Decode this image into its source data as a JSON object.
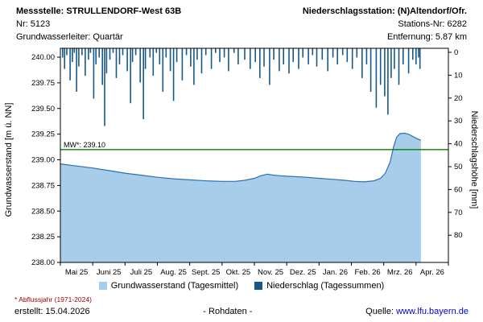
{
  "header": {
    "left": {
      "title": "Messstelle: STRULLENDORF-West 63B",
      "line2": "Nr: 5123",
      "line3": "Grundwasserleiter: Quartär"
    },
    "right": {
      "title": "Niederschlagsstation: (N)Altendorf/Ofr.",
      "line2": "Stations-Nr: 6282",
      "line3": "Entfernung: 5.87 km"
    }
  },
  "chart_data": {
    "type": "area+bar",
    "left_axis": {
      "label": "Grundwasserstand [m ü. NN]",
      "min": 238.0,
      "max": 240.0,
      "tick_step": 0.25
    },
    "right_axis": {
      "label": "Niederschlagshöhe [mm]",
      "min": 0,
      "max": 80,
      "tick_step": 10,
      "inverted": true
    },
    "x_axis": {
      "labels": [
        "Mai 25",
        "Juni 25",
        "Juli 25",
        "Aug. 25",
        "Sept. 25",
        "Okt. 25",
        "Nov. 25",
        "Dez. 25",
        "Jan. 26",
        "Feb. 26",
        "Mrz. 26",
        "Apr. 26"
      ]
    },
    "mean_line": {
      "label": "MW*: 239.10",
      "value": 239.1,
      "color": "#008000"
    },
    "groundwater": {
      "name": "Grundwasserstand (Tagesmittel)",
      "color_fill": "#a8cdea",
      "color_line": "#2f6fad",
      "points": [
        [
          0,
          238.96
        ],
        [
          0.5,
          238.94
        ],
        [
          1,
          238.92
        ],
        [
          1.5,
          238.895
        ],
        [
          2,
          238.87
        ],
        [
          2.5,
          238.85
        ],
        [
          3,
          238.83
        ],
        [
          3.5,
          238.815
        ],
        [
          4,
          238.805
        ],
        [
          4.5,
          238.795
        ],
        [
          5,
          238.79
        ],
        [
          5.4,
          238.79
        ],
        [
          5.7,
          238.8
        ],
        [
          6,
          238.82
        ],
        [
          6.2,
          238.845
        ],
        [
          6.4,
          238.86
        ],
        [
          6.6,
          238.85
        ],
        [
          6.8,
          238.845
        ],
        [
          7,
          238.84
        ],
        [
          7.3,
          238.835
        ],
        [
          7.6,
          238.83
        ],
        [
          8,
          238.82
        ],
        [
          8.4,
          238.81
        ],
        [
          8.8,
          238.8
        ],
        [
          9.1,
          238.79
        ],
        [
          9.4,
          238.785
        ],
        [
          9.7,
          238.795
        ],
        [
          9.9,
          238.82
        ],
        [
          10.05,
          238.87
        ],
        [
          10.2,
          238.98
        ],
        [
          10.3,
          239.12
        ],
        [
          10.4,
          239.22
        ],
        [
          10.5,
          239.255
        ],
        [
          10.65,
          239.26
        ],
        [
          10.8,
          239.245
        ],
        [
          11.0,
          239.21
        ],
        [
          11.15,
          239.19
        ]
      ]
    },
    "precipitation": {
      "name": "Niederschlag (Tagessummen)",
      "color": "#15598c",
      "bars": [
        [
          0.07,
          4
        ],
        [
          0.13,
          9
        ],
        [
          0.2,
          3
        ],
        [
          0.3,
          14
        ],
        [
          0.37,
          6
        ],
        [
          0.43,
          2
        ],
        [
          0.5,
          19
        ],
        [
          0.57,
          8
        ],
        [
          0.67,
          3
        ],
        [
          0.77,
          12
        ],
        [
          0.87,
          5
        ],
        [
          0.93,
          2
        ],
        [
          1.03,
          22
        ],
        [
          1.1,
          7
        ],
        [
          1.2,
          4
        ],
        [
          1.3,
          16
        ],
        [
          1.37,
          34
        ],
        [
          1.43,
          11
        ],
        [
          1.53,
          5
        ],
        [
          1.63,
          2
        ],
        [
          1.73,
          13
        ],
        [
          1.83,
          7
        ],
        [
          1.93,
          3
        ],
        [
          2.07,
          10
        ],
        [
          2.17,
          24
        ],
        [
          2.23,
          6
        ],
        [
          2.33,
          3
        ],
        [
          2.47,
          15
        ],
        [
          2.57,
          31
        ],
        [
          2.63,
          9
        ],
        [
          2.77,
          4
        ],
        [
          2.87,
          12
        ],
        [
          2.97,
          2
        ],
        [
          3.07,
          7
        ],
        [
          3.17,
          19
        ],
        [
          3.27,
          4
        ],
        [
          3.4,
          10
        ],
        [
          3.5,
          23
        ],
        [
          3.6,
          6
        ],
        [
          3.77,
          14
        ],
        [
          3.9,
          3
        ],
        [
          4.03,
          8
        ],
        [
          4.13,
          16
        ],
        [
          4.23,
          5
        ],
        [
          4.37,
          11
        ],
        [
          4.5,
          3
        ],
        [
          4.67,
          9
        ],
        [
          4.8,
          2
        ],
        [
          4.93,
          6
        ],
        [
          5.07,
          4
        ],
        [
          5.2,
          10
        ],
        [
          5.37,
          2
        ],
        [
          5.5,
          7
        ],
        [
          5.7,
          5
        ],
        [
          5.87,
          9
        ],
        [
          6.03,
          6
        ],
        [
          6.17,
          13
        ],
        [
          6.3,
          8
        ],
        [
          6.47,
          16
        ],
        [
          6.6,
          5
        ],
        [
          6.77,
          10
        ],
        [
          6.9,
          7
        ],
        [
          7.07,
          11
        ],
        [
          7.2,
          6
        ],
        [
          7.37,
          9
        ],
        [
          7.5,
          4
        ],
        [
          7.67,
          7
        ],
        [
          7.8,
          3
        ],
        [
          7.93,
          8
        ],
        [
          8.1,
          5
        ],
        [
          8.27,
          10
        ],
        [
          8.43,
          4
        ],
        [
          8.57,
          7
        ],
        [
          8.73,
          3
        ],
        [
          8.87,
          6
        ],
        [
          9.03,
          9
        ],
        [
          9.17,
          4
        ],
        [
          9.33,
          13
        ],
        [
          9.47,
          7
        ],
        [
          9.6,
          19
        ],
        [
          9.77,
          26
        ],
        [
          9.9,
          16
        ],
        [
          10.03,
          21
        ],
        [
          10.13,
          29
        ],
        [
          10.23,
          13
        ],
        [
          10.33,
          9
        ],
        [
          10.47,
          16
        ],
        [
          10.6,
          7
        ],
        [
          10.77,
          11
        ],
        [
          10.9,
          5
        ],
        [
          11.0,
          7
        ],
        [
          11.08,
          4
        ],
        [
          11.12,
          9
        ]
      ]
    }
  },
  "legend": {
    "groundwater": "Grundwasserstand (Tagesmittel)",
    "precipitation": "Niederschlag (Tagessummen)"
  },
  "footer": {
    "footnote": "* Abflussjahr (1971-2024)",
    "created": "erstellt:  15.04.2026",
    "center": "- Rohdaten -",
    "source_label": "Quelle:",
    "source_link": "www.lfu.bayern.de"
  }
}
